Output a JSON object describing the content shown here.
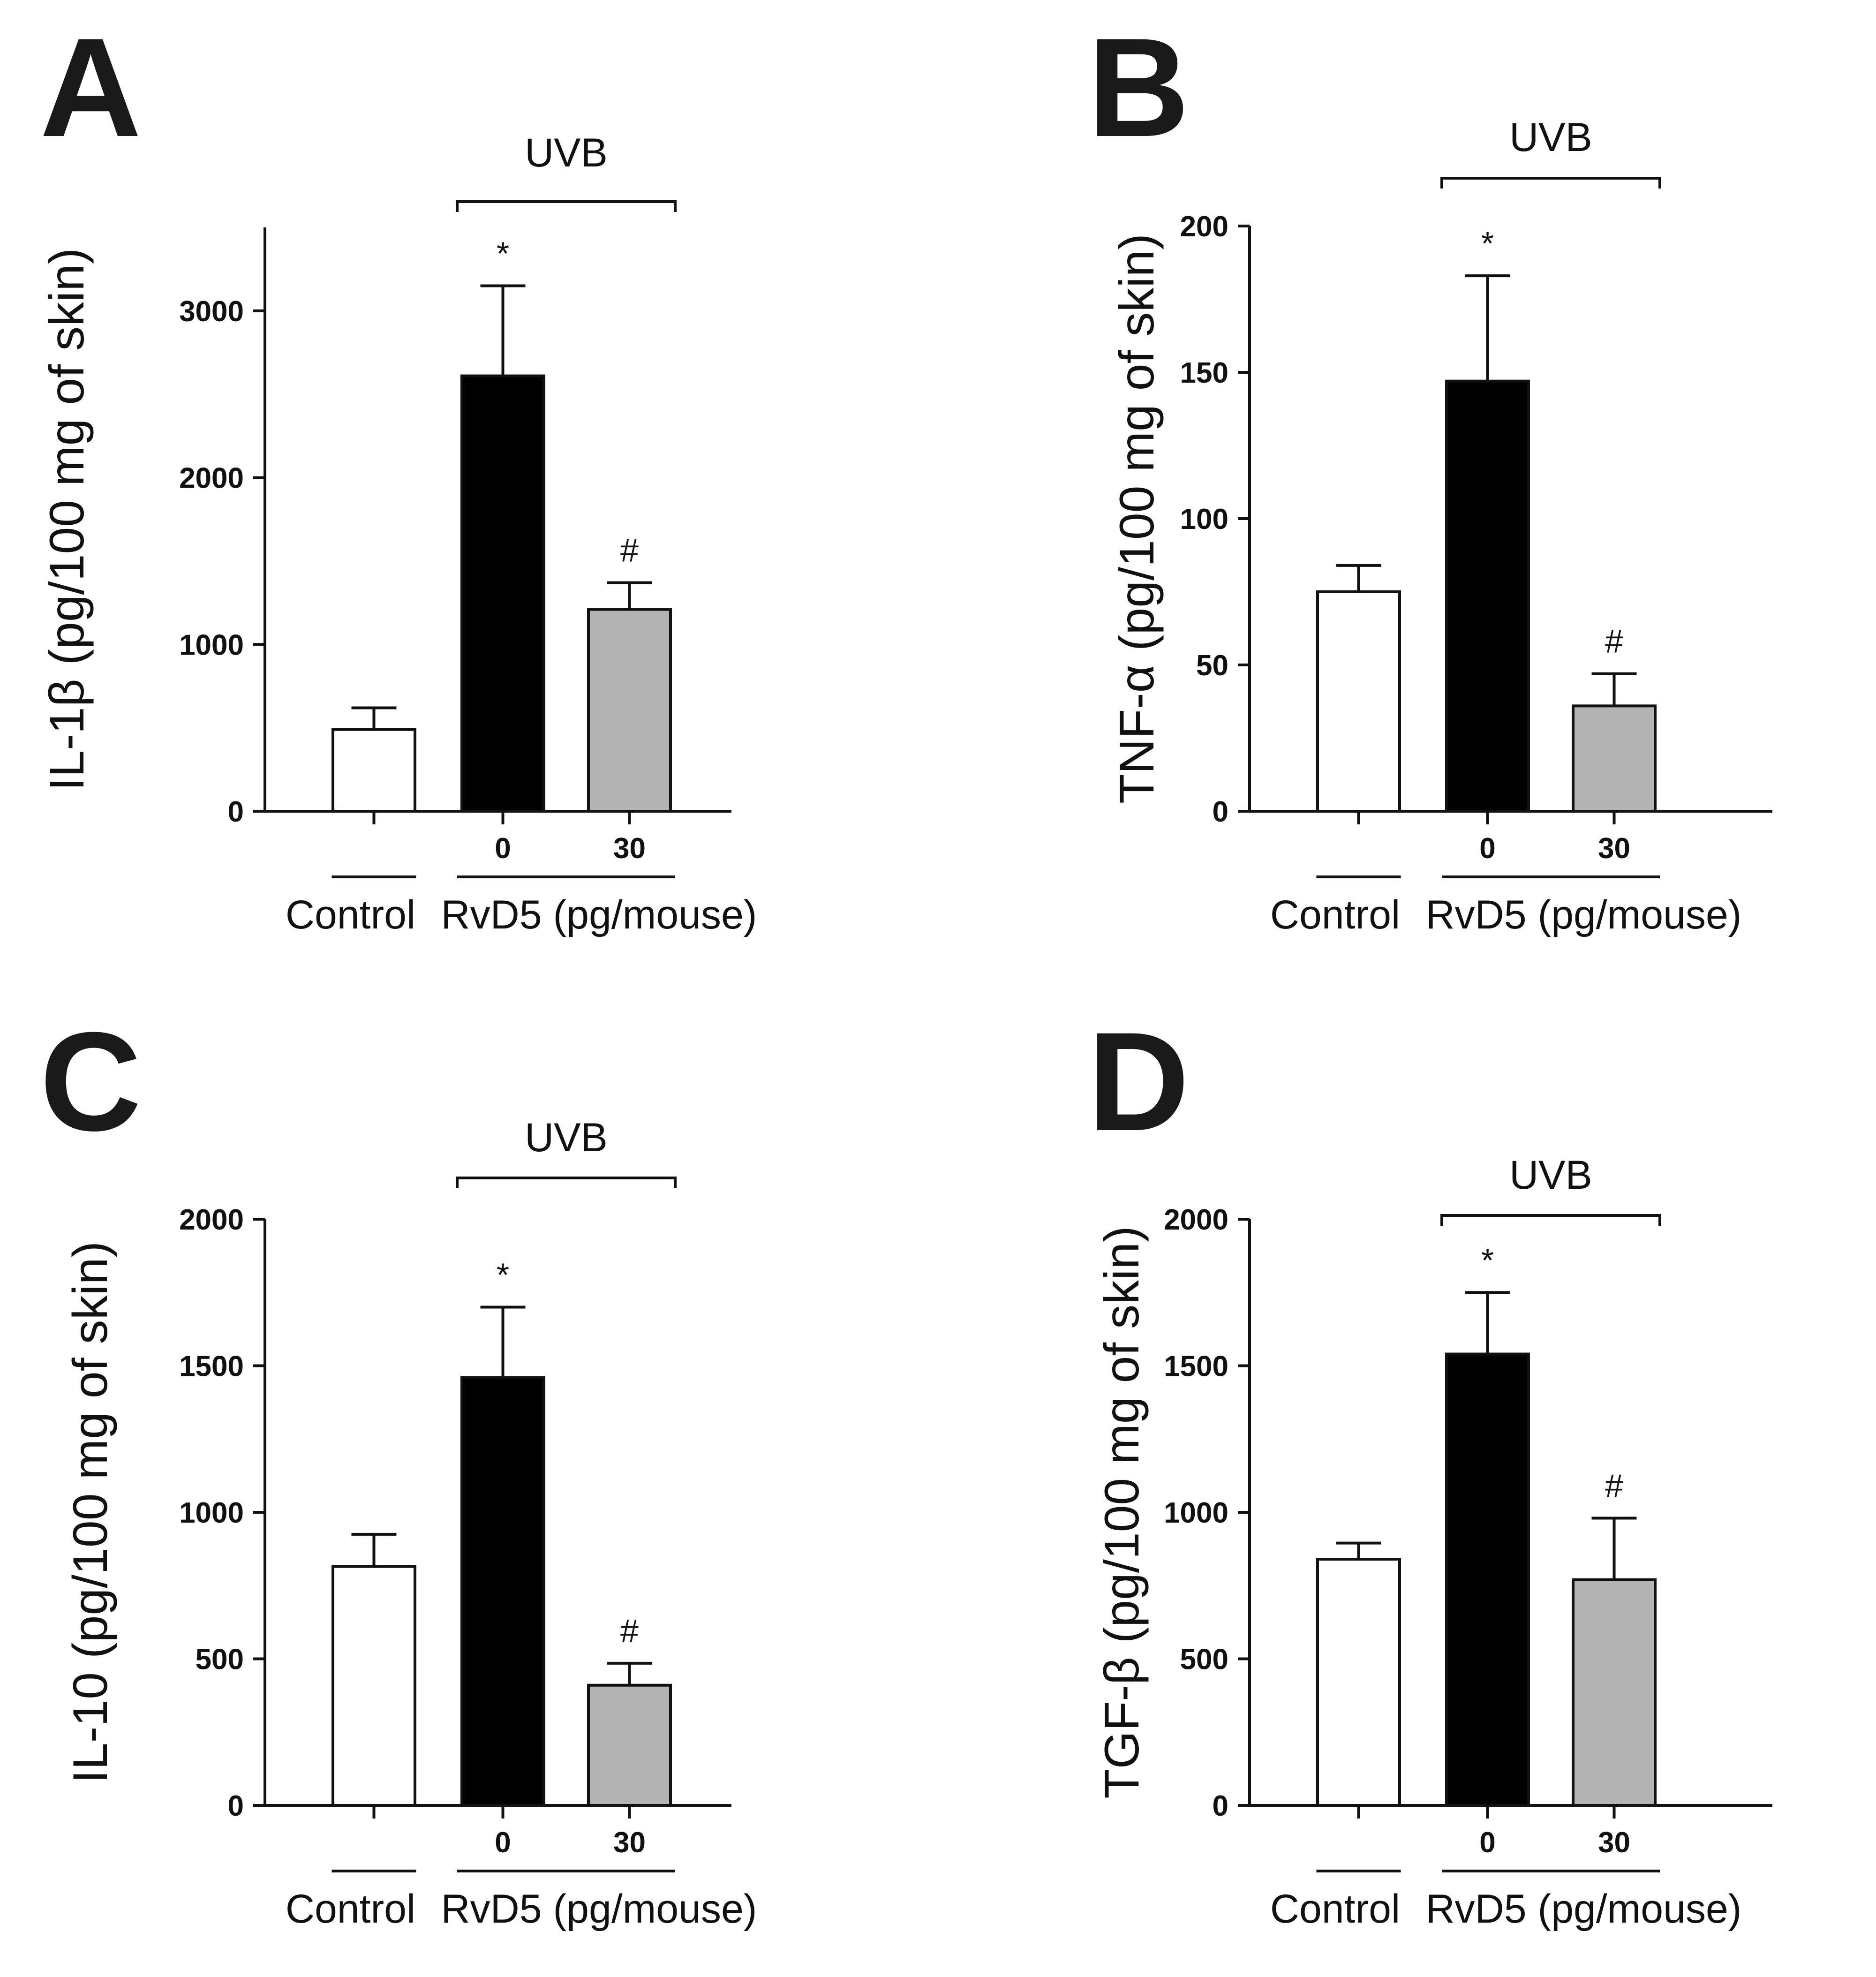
{
  "figure": {
    "group_labels": {
      "control": "Control",
      "treatment": "RvD5 (pg/mouse)",
      "bracket": "UVB"
    },
    "bar_colors": [
      "#ffffff",
      "#000000",
      "#b3b3b3"
    ]
  },
  "chart_data": [
    {
      "type": "bar",
      "panel": "A",
      "ylabel": "IL-1β (pg/100 mg of skin)",
      "categories": [
        "Control",
        "0",
        "30"
      ],
      "category_labels": [
        "",
        "0",
        "30"
      ],
      "values": [
        490,
        2610,
        1210
      ],
      "errors": [
        130,
        540,
        160
      ],
      "significance": [
        "",
        "*",
        "#"
      ],
      "ylim": [
        0,
        3500
      ],
      "yticks": [
        0,
        1000,
        2000,
        3000
      ]
    },
    {
      "type": "bar",
      "panel": "B",
      "ylabel": "TNF-α (pg/100 mg of skin)",
      "categories": [
        "Control",
        "0",
        "30"
      ],
      "category_labels": [
        "",
        "0",
        "30"
      ],
      "values": [
        75,
        147,
        36
      ],
      "errors": [
        9,
        36,
        11
      ],
      "significance": [
        "",
        "*",
        "#"
      ],
      "ylim": [
        0,
        200
      ],
      "yticks": [
        0,
        50,
        100,
        150,
        200
      ]
    },
    {
      "type": "bar",
      "panel": "C",
      "ylabel": "IL-10 (pg/100 mg of skin)",
      "categories": [
        "Control",
        "0",
        "30"
      ],
      "category_labels": [
        "",
        "0",
        "30"
      ],
      "values": [
        815,
        1460,
        410
      ],
      "errors": [
        110,
        240,
        75
      ],
      "significance": [
        "",
        "*",
        "#"
      ],
      "ylim": [
        0,
        2000
      ],
      "yticks": [
        0,
        500,
        1000,
        1500,
        2000
      ]
    },
    {
      "type": "bar",
      "panel": "D",
      "ylabel": "TGF-β (pg/100 mg of skin)",
      "categories": [
        "Control",
        "0",
        "30"
      ],
      "category_labels": [
        "",
        "0",
        "30"
      ],
      "values": [
        840,
        1540,
        770
      ],
      "errors": [
        55,
        210,
        210
      ],
      "significance": [
        "",
        "*",
        "#"
      ],
      "ylim": [
        0,
        2000
      ],
      "yticks": [
        0,
        500,
        1000,
        1500,
        2000
      ]
    }
  ]
}
